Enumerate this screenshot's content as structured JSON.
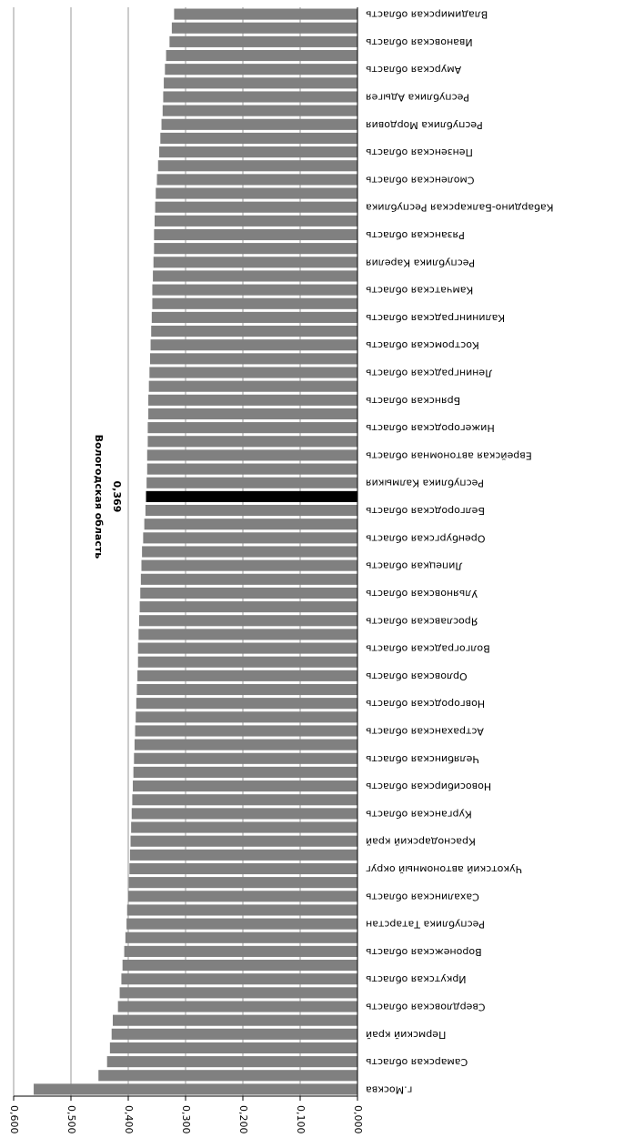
{
  "chart_data": {
    "type": "barh",
    "categories": [
      "г.Москва",
      null,
      "Самарская область",
      null,
      "Пермский край",
      null,
      "Свердловская область",
      null,
      "Иркутская область",
      null,
      "Воронежская область",
      null,
      "Республика Татарстан",
      null,
      "Сахалинская область",
      null,
      "Чукотский автономный округ",
      null,
      "Краснодарский край",
      null,
      "Курганская область",
      null,
      "Новосибирская область",
      null,
      "Челябинская область",
      null,
      "Астраханская область",
      null,
      "Новгородская область",
      null,
      "Орловская область",
      null,
      "Волгоградская область",
      null,
      "Ярославская область",
      null,
      "Ульяновская область",
      null,
      "Липецкая область",
      null,
      "Оренбургская область",
      null,
      "Белгородская область",
      null,
      "Республика Калмыкия",
      null,
      "Еврейская автономная область",
      null,
      "Нижегородская область",
      null,
      "Брянская область",
      null,
      "Ленинградская область",
      null,
      "Костромская область",
      null,
      "Калининградская область",
      null,
      "Камчатская область",
      null,
      "Республика Карелия",
      null,
      "Рязанская область",
      null,
      "Кабардино-Балкарская Республика",
      null,
      "Смоленская область",
      null,
      "Пензенская область",
      null,
      "Республика Мордовия",
      null,
      "Республика Адыгея",
      null,
      "Амурская область",
      null,
      "Ивановская область",
      null,
      "Владимирская область"
    ],
    "values": [
      0.565,
      0.452,
      0.437,
      0.432,
      0.429,
      0.427,
      0.418,
      0.415,
      0.412,
      0.41,
      0.407,
      0.405,
      0.403,
      0.402,
      0.4,
      0.399,
      0.398,
      0.397,
      0.396,
      0.395,
      0.394,
      0.393,
      0.392,
      0.391,
      0.39,
      0.389,
      0.388,
      0.387,
      0.386,
      0.385,
      0.384,
      0.383,
      0.383,
      0.382,
      0.381,
      0.38,
      0.379,
      0.378,
      0.377,
      0.376,
      0.374,
      0.372,
      0.37,
      0.369,
      0.368,
      0.367,
      0.367,
      0.366,
      0.366,
      0.365,
      0.365,
      0.364,
      0.363,
      0.362,
      0.361,
      0.36,
      0.359,
      0.358,
      0.358,
      0.357,
      0.356,
      0.355,
      0.355,
      0.354,
      0.353,
      0.352,
      0.35,
      0.348,
      0.346,
      0.344,
      0.342,
      0.34,
      0.339,
      0.338,
      0.336,
      0.334,
      0.328,
      0.324,
      0.32
    ],
    "value_labels": {
      "43": "0,369"
    },
    "annotation": {
      "index": 43,
      "text": "Вологодская область"
    },
    "color": "#808080",
    "highlight_color": "#000000",
    "xlim": [
      0,
      0.6
    ],
    "xticks": [
      {
        "value": 0,
        "label": "0,000"
      },
      {
        "value": 0.1,
        "label": "0,100"
      },
      {
        "value": 0.2,
        "label": "0,200"
      },
      {
        "value": 0.3,
        "label": "0,300"
      },
      {
        "value": 0.4,
        "label": "0,400"
      },
      {
        "value": 0.5,
        "label": "0,500"
      },
      {
        "value": 0.6,
        "label": "0,600"
      }
    ],
    "grid": true
  }
}
